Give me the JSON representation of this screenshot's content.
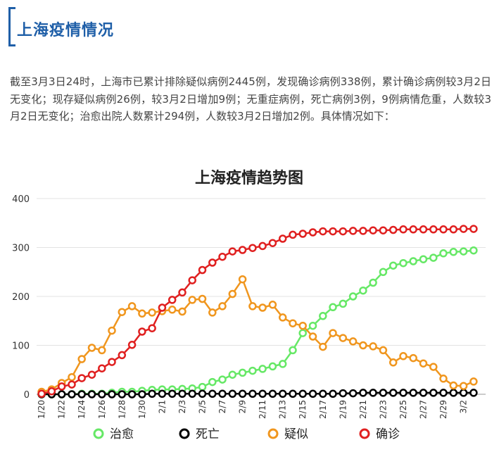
{
  "section_title": "上海疫情情况",
  "intro_text": "截至3月3日24时，上海市已累计排除疑似病例2445例，发现确诊病例338例，累计确诊病例较3月2日无变化；现存疑似病例26例，较3月2日增加9例；无重症病例，死亡病例3例，9例病情危重，人数较3月2日无变化；治愈出院人数累计294例，人数较3月2日增加2例。具体情况如下：",
  "chart_data": {
    "type": "line",
    "title": "上海疫情趋势图",
    "xlabel": "",
    "ylabel": "",
    "ylim": [
      0,
      400
    ],
    "yticks": [
      0,
      100,
      200,
      300,
      400
    ],
    "grid": true,
    "legend_position": "bottom",
    "x": [
      "1/20",
      "1/21",
      "1/22",
      "1/23",
      "1/24",
      "1/25",
      "1/26",
      "1/27",
      "1/28",
      "1/29",
      "1/30",
      "1/31",
      "2/1",
      "2/2",
      "2/3",
      "2/4",
      "2/5",
      "2/6",
      "2/7",
      "2/8",
      "2/9",
      "2/10",
      "2/11",
      "2/12",
      "2/13",
      "2/14",
      "2/15",
      "2/16",
      "2/17",
      "2/18",
      "2/19",
      "2/20",
      "2/21",
      "2/22",
      "2/23",
      "2/24",
      "2/25",
      "2/26",
      "2/27",
      "2/28",
      "2/29",
      "3/1",
      "3/2",
      "3/3"
    ],
    "x_tick_labels": [
      "1/20",
      "1/22",
      "1/24",
      "1/26",
      "1/28",
      "1/30",
      "2/1",
      "2/3",
      "2/5",
      "2/7",
      "2/9",
      "2/11",
      "2/13",
      "2/15",
      "2/17",
      "2/19",
      "2/21",
      "2/23",
      "2/25",
      "2/27",
      "2/29",
      "3/2"
    ],
    "series": [
      {
        "name": "治愈",
        "color": "#66e866",
        "values": [
          0,
          0,
          0,
          0,
          1,
          1,
          1,
          3,
          5,
          5,
          7,
          9,
          10,
          10,
          11,
          12,
          15,
          25,
          30,
          40,
          44,
          48,
          52,
          57,
          62,
          90,
          125,
          140,
          160,
          178,
          185,
          200,
          212,
          228,
          250,
          263,
          268,
          272,
          276,
          279,
          288,
          291,
          292,
          294
        ]
      },
      {
        "name": "死亡",
        "color": "#000000",
        "values": [
          0,
          0,
          0,
          0,
          0,
          0,
          0,
          0,
          0,
          0,
          0,
          1,
          1,
          1,
          1,
          1,
          1,
          1,
          1,
          1,
          1,
          1,
          1,
          1,
          1,
          1,
          1,
          1,
          1,
          1,
          2,
          2,
          3,
          3,
          3,
          3,
          3,
          3,
          3,
          3,
          3,
          3,
          3,
          3
        ]
      },
      {
        "name": "疑似",
        "color": "#f0961e",
        "values": [
          5,
          10,
          23,
          35,
          72,
          95,
          90,
          130,
          168,
          180,
          165,
          167,
          170,
          173,
          169,
          193,
          195,
          167,
          180,
          205,
          235,
          180,
          177,
          183,
          157,
          145,
          140,
          118,
          97,
          125,
          115,
          108,
          100,
          98,
          90,
          65,
          78,
          74,
          63,
          56,
          32,
          18,
          17,
          26
        ]
      },
      {
        "name": "确诊",
        "color": "#e02020",
        "values": [
          1,
          6,
          16,
          20,
          33,
          40,
          53,
          66,
          80,
          101,
          128,
          135,
          177,
          193,
          208,
          233,
          254,
          269,
          281,
          292,
          295,
          299,
          303,
          309,
          318,
          326,
          328,
          331,
          333,
          333,
          333,
          334,
          334,
          335,
          335,
          336,
          337,
          337,
          337,
          337,
          337,
          337,
          338,
          338
        ]
      }
    ]
  }
}
